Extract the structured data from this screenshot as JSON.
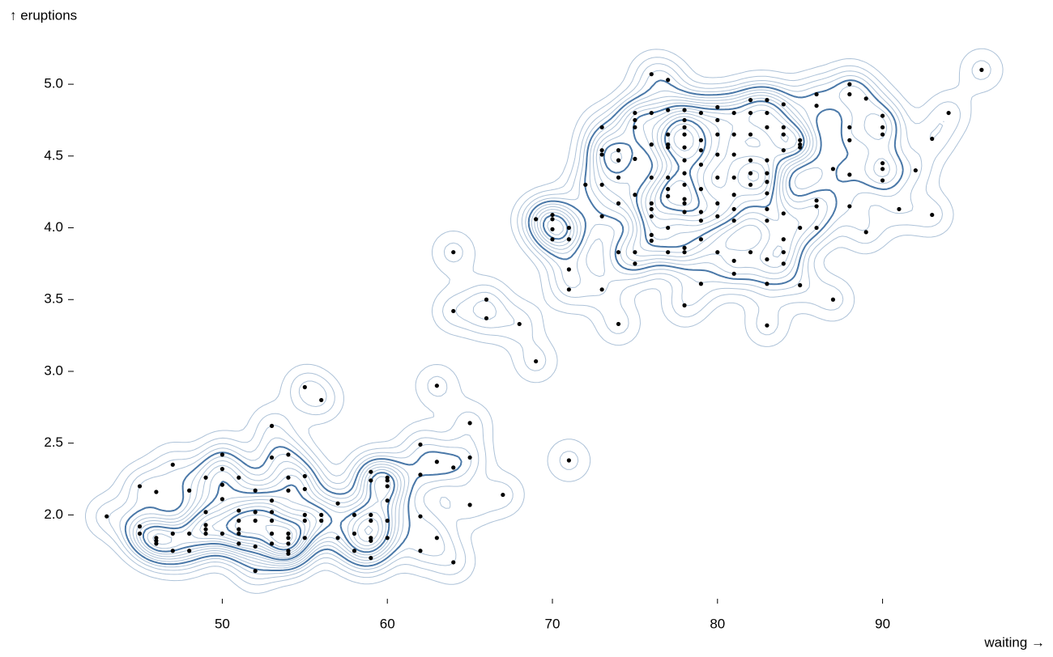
{
  "chart_data": {
    "type": "scatter",
    "x_label": "waiting →",
    "y_label": "↑ eruptions",
    "color": "#000000",
    "xlim": [
      41,
      99
    ],
    "ylim": [
      1.45,
      5.35
    ],
    "xticks": [
      50,
      60,
      70,
      80,
      90
    ],
    "yticks": [
      {
        "value": 2,
        "label": "2.0"
      },
      2.5,
      {
        "value": 3,
        "label": "3.0"
      },
      3.5,
      {
        "value": 4,
        "label": "4.0"
      },
      4.5,
      {
        "value": 5,
        "label": "5.0"
      }
    ],
    "x": [
      43,
      45,
      45,
      45,
      46,
      46,
      46,
      46,
      47,
      47,
      47,
      48,
      48,
      48,
      49,
      49,
      49,
      49,
      49,
      50,
      50,
      50,
      50,
      50,
      51,
      51,
      51,
      51,
      51,
      51,
      52,
      52,
      52,
      52,
      52,
      53,
      53,
      53,
      53,
      53,
      53,
      53,
      54,
      54,
      54,
      54,
      54,
      54,
      54,
      54,
      55,
      55,
      55,
      55,
      55,
      55,
      56,
      56,
      56,
      57,
      57,
      58,
      58,
      58,
      59,
      59,
      59,
      59,
      59,
      59,
      59,
      60,
      60,
      60,
      60,
      60,
      60,
      62,
      62,
      62,
      62,
      63,
      63,
      63,
      64,
      64,
      64,
      64,
      65,
      65,
      65,
      66,
      66,
      67,
      68,
      69,
      69,
      70,
      70,
      70,
      70,
      71,
      71,
      71,
      71,
      71,
      72,
      73,
      73,
      73,
      73,
      73,
      73,
      74,
      74,
      74,
      74,
      74,
      74,
      75,
      75,
      75,
      75,
      75,
      75,
      75,
      76,
      76,
      76,
      76,
      76,
      76,
      76,
      76,
      76,
      77,
      77,
      77,
      77,
      77,
      77,
      77,
      77,
      77,
      77,
      78,
      78,
      78,
      78,
      78,
      78,
      78,
      78,
      78,
      78,
      78,
      78,
      78,
      78,
      79,
      79,
      79,
      79,
      79,
      79,
      79,
      79,
      79,
      80,
      80,
      80,
      80,
      80,
      80,
      80,
      80,
      81,
      81,
      81,
      81,
      81,
      81,
      81,
      81,
      81,
      82,
      82,
      82,
      82,
      82,
      82,
      82,
      83,
      83,
      83,
      83,
      83,
      83,
      83,
      83,
      83,
      83,
      83,
      83,
      84,
      84,
      84,
      84,
      84,
      84,
      84,
      84,
      85,
      85,
      85,
      85,
      85,
      86,
      86,
      86,
      86,
      86,
      87,
      87,
      88,
      88,
      88,
      88,
      88,
      88,
      89,
      89,
      90,
      90,
      90,
      90,
      90,
      90,
      91,
      92,
      93,
      93,
      94,
      96
    ],
    "values": [
      1.99,
      2.2,
      1.92,
      1.87,
      2.16,
      1.84,
      1.82,
      1.8,
      2.35,
      1.87,
      1.75,
      2.17,
      1.87,
      1.75,
      2.26,
      2.02,
      1.93,
      1.9,
      1.87,
      2.42,
      2.32,
      2.21,
      2.11,
      1.87,
      2.26,
      2.03,
      1.96,
      1.9,
      1.87,
      1.8,
      2.17,
      2.02,
      1.96,
      1.78,
      1.61,
      2.62,
      2.4,
      2.1,
      2.02,
      1.96,
      1.87,
      1.8,
      2.42,
      2.26,
      2.17,
      1.87,
      1.84,
      1.8,
      1.75,
      1.73,
      2.89,
      2.27,
      2.18,
      2.0,
      1.96,
      1.84,
      2.8,
      2.0,
      1.96,
      2.08,
      1.84,
      2.0,
      1.87,
      1.75,
      2.3,
      2.24,
      2.0,
      1.96,
      1.84,
      1.82,
      1.7,
      2.26,
      2.24,
      2.2,
      2.1,
      1.96,
      1.84,
      2.49,
      2.28,
      1.99,
      1.75,
      2.9,
      2.37,
      1.84,
      2.33,
      1.67,
      3.83,
      3.42,
      2.64,
      2.4,
      2.07,
      3.5,
      3.37,
      2.14,
      3.33,
      3.07,
      4.06,
      4.09,
      4.06,
      3.99,
      3.92,
      2.38,
      4.0,
      3.92,
      3.71,
      3.57,
      4.3,
      4.7,
      4.54,
      4.51,
      4.3,
      4.08,
      3.57,
      4.54,
      4.47,
      4.35,
      4.17,
      3.83,
      3.33,
      4.8,
      4.75,
      4.7,
      4.48,
      4.23,
      3.83,
      3.75,
      5.07,
      4.8,
      4.58,
      4.35,
      4.17,
      4.13,
      4.08,
      3.95,
      3.91,
      5.03,
      4.82,
      4.65,
      4.58,
      4.56,
      4.35,
      4.27,
      4.22,
      4.0,
      3.83,
      4.82,
      4.75,
      4.7,
      4.65,
      4.56,
      4.47,
      4.38,
      4.3,
      4.2,
      4.17,
      4.11,
      3.86,
      3.83,
      3.46,
      4.8,
      4.61,
      4.54,
      4.44,
      4.27,
      4.11,
      4.05,
      3.92,
      3.61,
      4.84,
      4.75,
      4.65,
      4.51,
      4.35,
      4.17,
      4.08,
      3.83,
      4.8,
      4.65,
      4.51,
      4.35,
      4.23,
      4.13,
      4.05,
      3.77,
      3.68,
      4.89,
      4.8,
      4.65,
      4.47,
      4.38,
      4.3,
      3.83,
      4.89,
      4.8,
      4.7,
      4.47,
      4.38,
      4.32,
      4.24,
      4.13,
      4.05,
      3.78,
      3.61,
      3.32,
      4.86,
      4.7,
      4.65,
      4.54,
      4.1,
      3.92,
      3.83,
      3.75,
      4.61,
      4.58,
      4.56,
      4.0,
      3.6,
      4.93,
      4.85,
      4.19,
      4.15,
      4.0,
      4.41,
      3.5,
      5.0,
      4.93,
      4.7,
      4.61,
      4.37,
      4.15,
      4.9,
      3.97,
      4.78,
      4.7,
      4.65,
      4.45,
      4.41,
      4.33,
      4.13,
      4.4,
      4.62,
      4.09,
      4.8,
      5.1
    ]
  }
}
